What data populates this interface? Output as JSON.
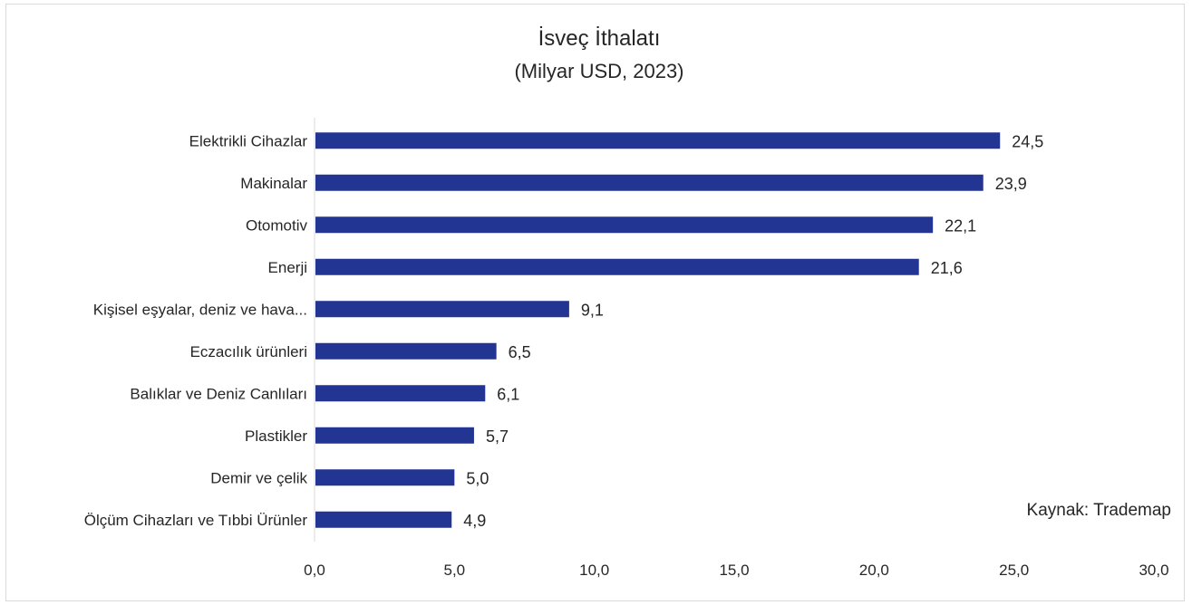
{
  "chart_data": {
    "type": "bar",
    "orientation": "horizontal",
    "title": "İsveç İthalatı",
    "subtitle": "(Milyar USD, 2023)",
    "categories": [
      "Elektrikli Cihazlar",
      "Makinalar",
      "Otomotiv",
      "Enerji",
      "Kişisel eşyalar, deniz ve hava...",
      "Eczacılık ürünleri",
      "Balıklar ve Deniz Canlıları",
      "Plastikler",
      "Demir ve çelik",
      "Ölçüm Cihazları ve Tıbbi Ürünler"
    ],
    "values": [
      24.5,
      23.9,
      22.1,
      21.6,
      9.1,
      6.5,
      6.1,
      5.7,
      5.0,
      4.9
    ],
    "value_labels": [
      "24,5",
      "23,9",
      "22,1",
      "21,6",
      "9,1",
      "6,5",
      "6,1",
      "5,7",
      "5,0",
      "4,9"
    ],
    "xlim": [
      0,
      30
    ],
    "x_ticks": [
      0,
      5,
      10,
      15,
      20,
      25,
      30
    ],
    "x_tick_labels": [
      "0,0",
      "5,0",
      "10,0",
      "15,0",
      "20,0",
      "25,0",
      "30,0"
    ],
    "grid": false,
    "legend": "none",
    "bar_color": "#233592",
    "source_note": "Kaynak: Trademap"
  }
}
